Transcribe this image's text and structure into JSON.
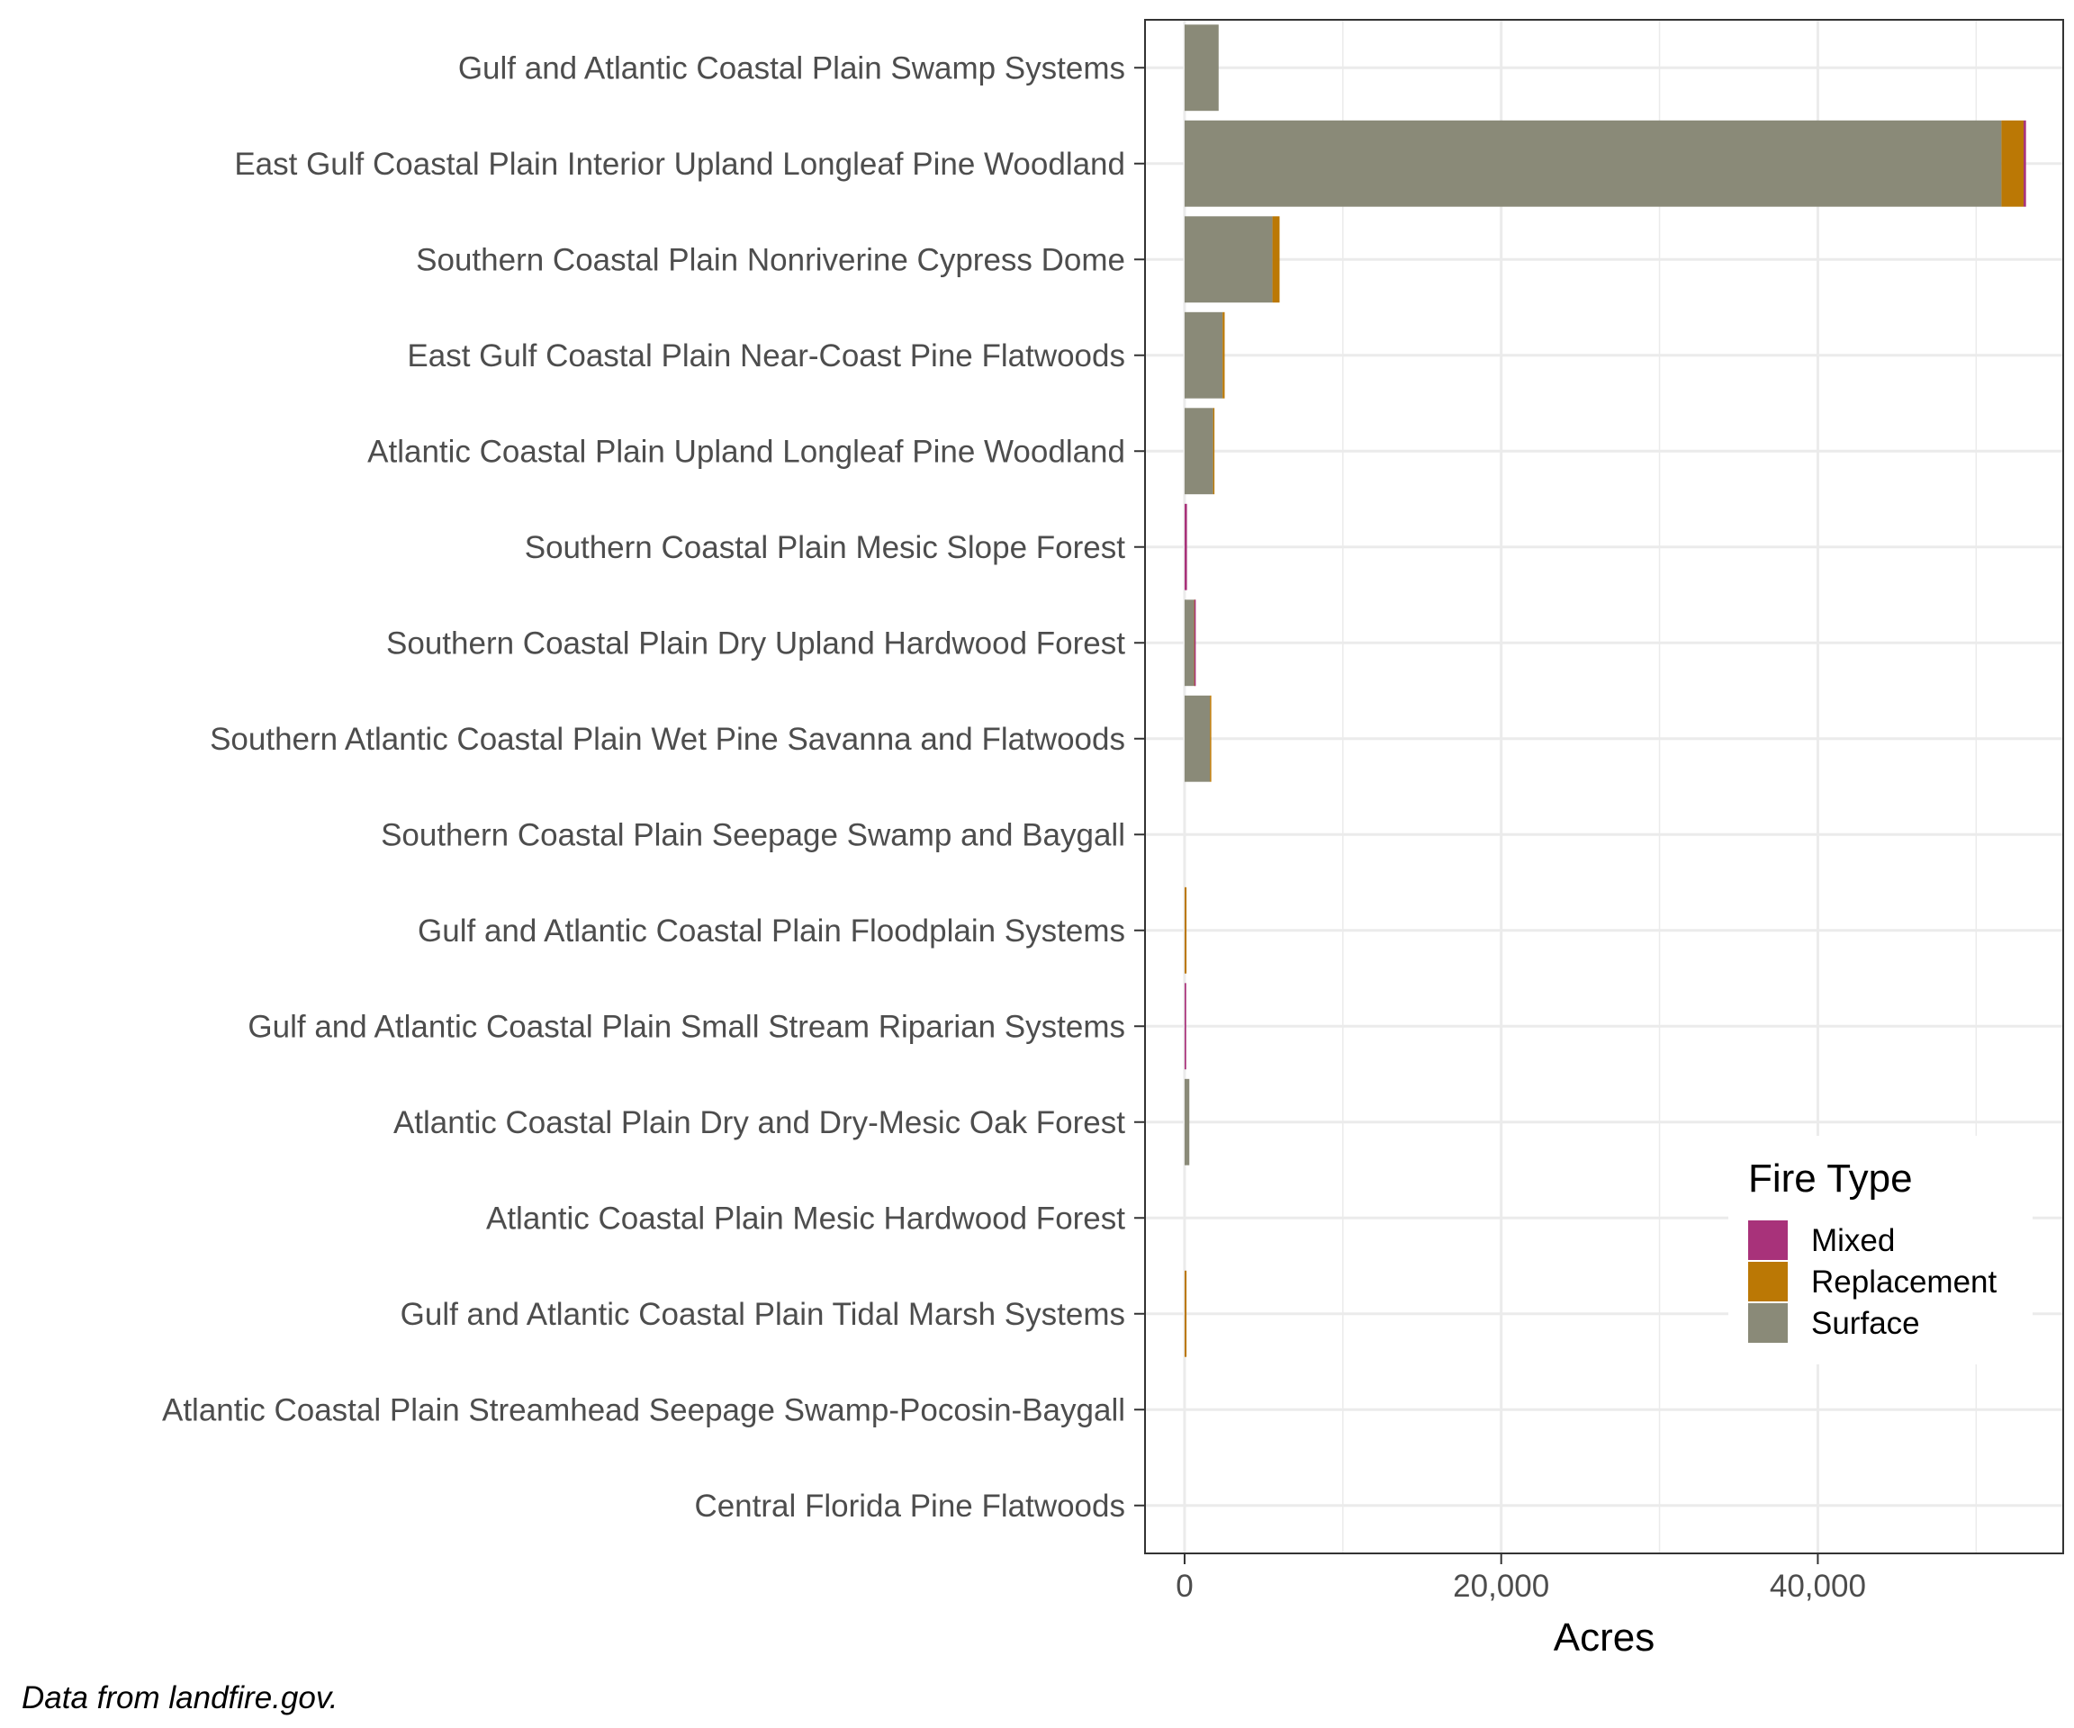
{
  "chart_data": {
    "type": "bar",
    "orientation": "horizontal",
    "stacked": true,
    "categories": [
      "Gulf and Atlantic Coastal Plain Swamp Systems",
      "East Gulf Coastal Plain Interior Upland Longleaf Pine Woodland",
      "Southern Coastal Plain Nonriverine Cypress Dome",
      "East Gulf Coastal Plain Near-Coast Pine Flatwoods",
      "Atlantic Coastal Plain Upland Longleaf Pine Woodland",
      "Southern Coastal Plain Mesic Slope Forest",
      "Southern Coastal Plain Dry Upland Hardwood Forest",
      "Southern Atlantic Coastal Plain Wet Pine Savanna and Flatwoods",
      "Southern Coastal Plain Seepage Swamp and Baygall",
      "Gulf and Atlantic Coastal Plain Floodplain Systems",
      "Gulf and Atlantic Coastal Plain Small Stream Riparian Systems",
      "Atlantic Coastal Plain Dry and Dry-Mesic Oak Forest",
      "Atlantic Coastal Plain Mesic Hardwood Forest",
      "Gulf and Atlantic Coastal Plain Tidal Marsh Systems",
      "Atlantic Coastal Plain Streamhead Seepage Swamp-Pocosin-Baygall",
      "Central Florida Pine Flatwoods"
    ],
    "series": [
      {
        "name": "Surface",
        "color": "#8a8a78",
        "values": [
          2150,
          51600,
          5550,
          2400,
          1800,
          0,
          600,
          1600,
          0,
          0,
          0,
          300,
          0,
          0,
          0,
          0
        ]
      },
      {
        "name": "Replacement",
        "color": "#bb7805",
        "values": [
          0,
          1400,
          450,
          130,
          80,
          0,
          20,
          60,
          0,
          120,
          0,
          0,
          0,
          120,
          0,
          0
        ]
      },
      {
        "name": "Mixed",
        "color": "#a8327a",
        "values": [
          0,
          150,
          0,
          0,
          0,
          150,
          60,
          0,
          0,
          0,
          100,
          0,
          0,
          0,
          0,
          0
        ]
      }
    ],
    "xlabel": "Acres",
    "ylabel": "",
    "xlim": [
      -2500,
      55500
    ],
    "xticks": [
      0,
      20000,
      40000
    ],
    "xtick_labels": [
      "0",
      "20,000",
      "40,000"
    ],
    "grid": true,
    "legend": {
      "title": "Fire Type",
      "placement": "bottom-right",
      "entries": [
        "Mixed",
        "Replacement",
        "Surface"
      ],
      "colors": {
        "Mixed": "#a8327a",
        "Replacement": "#bb7805",
        "Surface": "#8a8a78"
      }
    },
    "caption": "Data from landfire.gov."
  }
}
